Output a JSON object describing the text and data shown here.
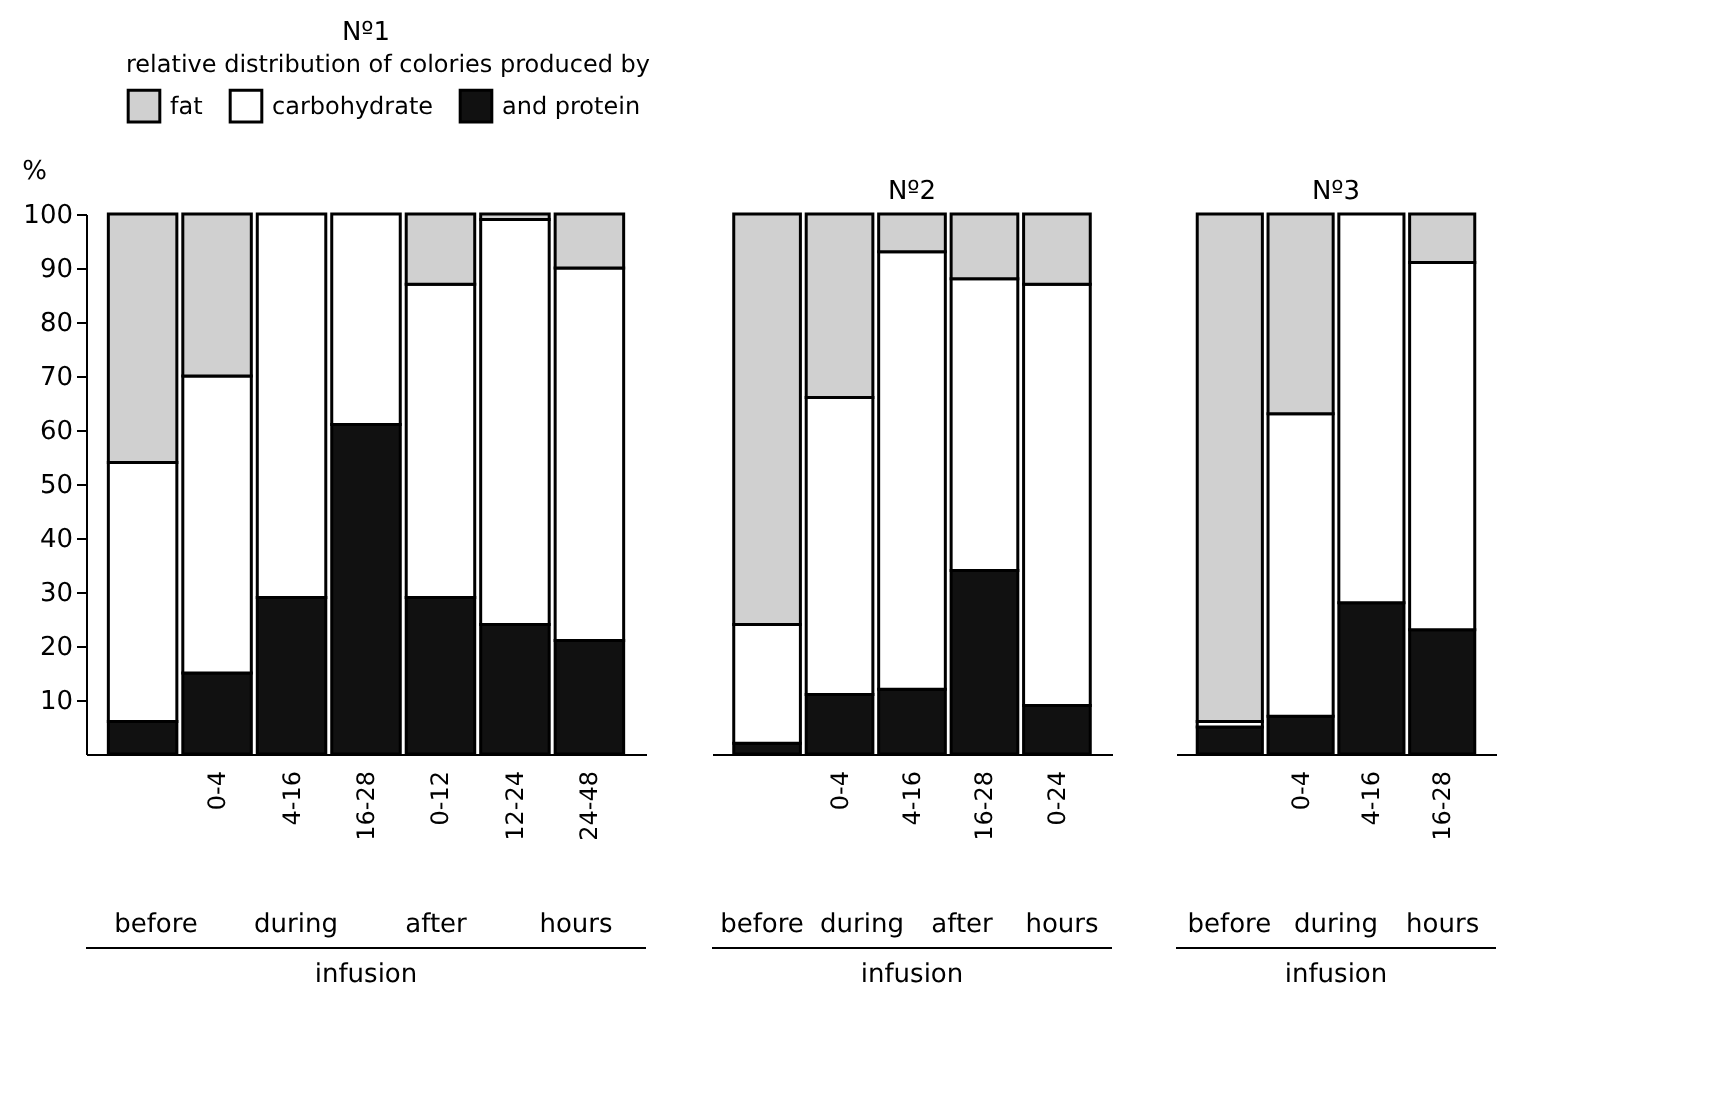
{
  "chart_data": [
    {
      "type": "bar",
      "stacked": true,
      "title": "Nº1",
      "ylabel": "%",
      "xlabel": "infusion",
      "legend": "top",
      "legend_title": "relative distribution of colories produced by",
      "categories": [
        null,
        "0-4",
        "4-16",
        "16-28",
        "0-12",
        "12-24",
        "24-48"
      ],
      "ylim": [
        0,
        100
      ],
      "yticks": [
        10,
        20,
        30,
        40,
        50,
        60,
        70,
        80,
        90,
        100
      ],
      "annotations": [
        "before",
        "during",
        "after",
        "hours"
      ],
      "series": [
        {
          "name": "and protein",
          "color": "#111111",
          "values": [
            6,
            15,
            29,
            61,
            29,
            24,
            21
          ]
        },
        {
          "name": "carbohydrate",
          "color": "#ffffff",
          "values": [
            48,
            55,
            71,
            39,
            58,
            75,
            69
          ]
        },
        {
          "name": "fat",
          "color": "#d0d0d0",
          "values": [
            46,
            30,
            0,
            0,
            13,
            1,
            10
          ]
        }
      ]
    },
    {
      "type": "bar",
      "stacked": true,
      "title": "Nº2",
      "xlabel": "infusion",
      "tick_labels": "x",
      "categories": [
        null,
        "0-4",
        "4-16",
        "16-28",
        "0-24"
      ],
      "ylim": [
        0,
        100
      ],
      "annotations": [
        "before",
        "during",
        "after",
        "hours"
      ],
      "series": [
        {
          "color": "#111111",
          "values": [
            2,
            11,
            12,
            34,
            9
          ]
        },
        {
          "color": "#ffffff",
          "values": [
            22,
            55,
            81,
            54,
            78
          ]
        },
        {
          "color": "#d0d0d0",
          "values": [
            76,
            34,
            7,
            12,
            13
          ]
        }
      ]
    },
    {
      "type": "bar",
      "stacked": true,
      "title": "Nº3",
      "xlabel": "infusion",
      "tick_labels": "x",
      "categories": [
        null,
        "0-4",
        "4-16",
        "16-28"
      ],
      "ylim": [
        0,
        100
      ],
      "annotations": [
        "before",
        "during",
        "hours"
      ],
      "series": [
        {
          "color": "#111111",
          "values": [
            5,
            7,
            28,
            23
          ]
        },
        {
          "color": "#ffffff",
          "values": [
            1,
            56,
            72,
            68
          ]
        },
        {
          "color": "#d0d0d0",
          "values": [
            94,
            37,
            0,
            9
          ]
        }
      ]
    }
  ]
}
